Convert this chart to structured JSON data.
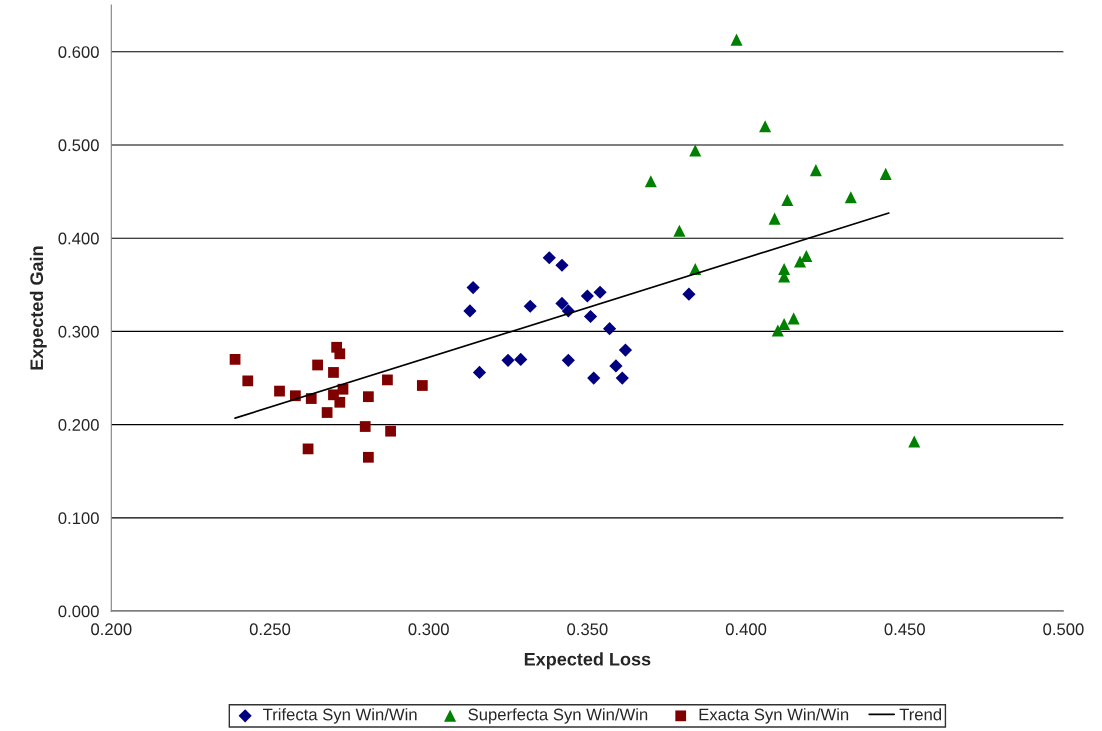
{
  "chart_data": {
    "type": "scatter",
    "xlabel": "Expected Loss",
    "ylabel": "Expected Gain",
    "xlim": [
      0.2,
      0.5
    ],
    "ylim": [
      0,
      0.65
    ],
    "xticks": [
      {
        "value": 0.2,
        "label": "0.200"
      },
      {
        "value": 0.25,
        "label": "0.250"
      },
      {
        "value": 0.3,
        "label": "0.300"
      },
      {
        "value": 0.35,
        "label": "0.350"
      },
      {
        "value": 0.4,
        "label": "0.400"
      },
      {
        "value": 0.45,
        "label": "0.450"
      },
      {
        "value": 0.5,
        "label": "0.500"
      }
    ],
    "yticks": [
      {
        "value": 0,
        "label": "0.000"
      },
      {
        "value": 0.1,
        "label": "0.100"
      },
      {
        "value": 0.2,
        "label": "0.200"
      },
      {
        "value": 0.3,
        "label": "0.300"
      },
      {
        "value": 0.4,
        "label": "0.400"
      },
      {
        "value": 0.5,
        "label": "0.500"
      },
      {
        "value": 0.6,
        "label": "0.600"
      }
    ],
    "grid": "y",
    "legend": "bottom",
    "series": [
      {
        "name": "Trifecta Syn Win/Win",
        "marker": "diamond",
        "color": "#000080",
        "x": [
          0.313,
          0.314,
          0.316,
          0.325,
          0.329,
          0.332,
          0.338,
          0.342,
          0.342,
          0.344,
          0.344,
          0.35,
          0.351,
          0.352,
          0.354,
          0.357,
          0.359,
          0.361,
          0.362,
          0.382
        ],
        "values": [
          0.322,
          0.347,
          0.256,
          0.269,
          0.27,
          0.327,
          0.379,
          0.371,
          0.33,
          0.322,
          0.269,
          0.338,
          0.316,
          0.25,
          0.342,
          0.303,
          0.263,
          0.25,
          0.28,
          0.34
        ]
      },
      {
        "name": "Superfecta Syn Win/Win",
        "marker": "triangle",
        "color": "#008000",
        "x": [
          0.397,
          0.406,
          0.384,
          0.37,
          0.422,
          0.444,
          0.433,
          0.413,
          0.409,
          0.379,
          0.384,
          0.412,
          0.419,
          0.417,
          0.412,
          0.415,
          0.412,
          0.41,
          0.453
        ],
        "values": [
          0.613,
          0.52,
          0.494,
          0.461,
          0.473,
          0.469,
          0.444,
          0.441,
          0.421,
          0.408,
          0.367,
          0.367,
          0.381,
          0.375,
          0.359,
          0.314,
          0.308,
          0.301,
          0.182
        ]
      },
      {
        "name": "Exacta Syn Win/Win",
        "marker": "square",
        "color": "#800000",
        "x": [
          0.239,
          0.243,
          0.253,
          0.258,
          0.263,
          0.262,
          0.265,
          0.268,
          0.27,
          0.27,
          0.271,
          0.272,
          0.272,
          0.273,
          0.28,
          0.281,
          0.281,
          0.287,
          0.288,
          0.298
        ],
        "values": [
          0.27,
          0.247,
          0.236,
          0.231,
          0.228,
          0.174,
          0.264,
          0.213,
          0.256,
          0.232,
          0.283,
          0.276,
          0.224,
          0.238,
          0.198,
          0.23,
          0.165,
          0.248,
          0.193,
          0.242
        ]
      },
      {
        "name": "Trend",
        "type": "line",
        "marker": "none",
        "line_style": "solid",
        "color": "#000000",
        "x": [
          0.239,
          0.445
        ],
        "values": [
          0.207,
          0.427
        ]
      }
    ]
  }
}
